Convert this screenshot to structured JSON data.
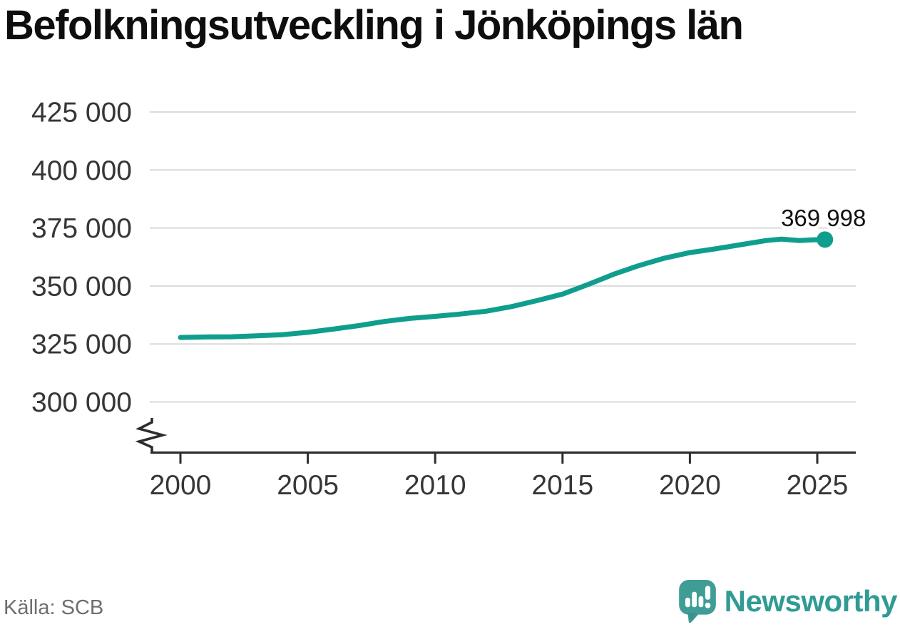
{
  "chart_data": {
    "type": "line",
    "title": "Befolkningsutveckling i Jönköpings län",
    "grid": "horizontal-only",
    "legend": "none",
    "y_axis_break": true,
    "ylim": [
      300000,
      425000
    ],
    "xlim": [
      1998.8,
      2026.5
    ],
    "x_ticks": [
      {
        "value": 2000,
        "label": "2000"
      },
      {
        "value": 2005,
        "label": "2005"
      },
      {
        "value": 2010,
        "label": "2010"
      },
      {
        "value": 2015,
        "label": "2015"
      },
      {
        "value": 2020,
        "label": "2020"
      },
      {
        "value": 2025,
        "label": "2025"
      }
    ],
    "y_ticks": [
      {
        "value": 425000,
        "label": "425 000"
      },
      {
        "value": 400000,
        "label": "400 000"
      },
      {
        "value": 375000,
        "label": "375 000"
      },
      {
        "value": 350000,
        "label": "350 000"
      },
      {
        "value": 325000,
        "label": "325 000"
      },
      {
        "value": 300000,
        "label": "300 000"
      }
    ],
    "series": [
      {
        "color": "#0f9e8d",
        "points": [
          [
            2000,
            327800
          ],
          [
            2001,
            328000
          ],
          [
            2002,
            328100
          ],
          [
            2003,
            328500
          ],
          [
            2004,
            329000
          ],
          [
            2005,
            330000
          ],
          [
            2006,
            331400
          ],
          [
            2007,
            332900
          ],
          [
            2008,
            334700
          ],
          [
            2009,
            336000
          ],
          [
            2010,
            336900
          ],
          [
            2011,
            337900
          ],
          [
            2012,
            339100
          ],
          [
            2013,
            341100
          ],
          [
            2014,
            343700
          ],
          [
            2015,
            346500
          ],
          [
            2016,
            350600
          ],
          [
            2017,
            355000
          ],
          [
            2018,
            358800
          ],
          [
            2019,
            362000
          ],
          [
            2020,
            364400
          ],
          [
            2021,
            366000
          ],
          [
            2022,
            367800
          ],
          [
            2023,
            369600
          ],
          [
            2023.6,
            370200
          ],
          [
            2024.3,
            369600
          ],
          [
            2024.8,
            369900
          ],
          [
            2025.3,
            369998
          ]
        ]
      }
    ],
    "end_point": {
      "x": 2025.3,
      "y": 369998
    },
    "end_label": "369 998"
  },
  "footer": {
    "source": "Källa: SCB",
    "brand": "Newsworthy",
    "brand_icon": "newsworthy-speech-bubble-bars-icon"
  },
  "colors": {
    "line": "#0f9e8d",
    "grid": "#dadada",
    "axis": "#2d2d2d",
    "tick_text": "#363636",
    "title_text": "#0e0e0e",
    "source_text": "#6e6e6e",
    "brand_text": "#2f9b94",
    "logo_bubble": "#3f9d96"
  }
}
